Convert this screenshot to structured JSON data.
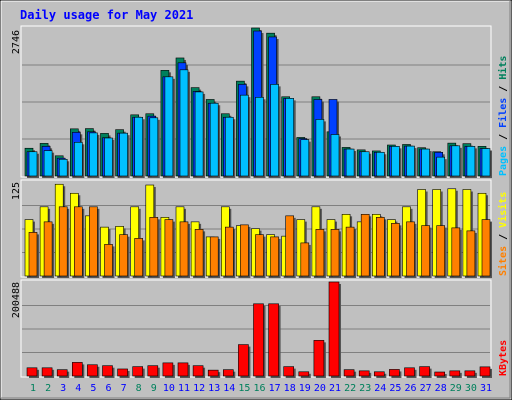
{
  "title": "Daily usage for May 2021",
  "colors": {
    "background": "#c0c0c0",
    "title": "#0000ff",
    "hits": "#00805c",
    "files": "#0040ff",
    "pages": "#00c0ff",
    "visits": "#ffff00",
    "sites": "#ff8000",
    "kbytes": "#ff0000",
    "weekend_day": "#00805c",
    "weekday": "#0000ff"
  },
  "chart_data": [
    {
      "type": "bar",
      "title": "Daily usage for May 2021",
      "categories": [
        "1",
        "2",
        "3",
        "4",
        "5",
        "6",
        "7",
        "8",
        "9",
        "10",
        "11",
        "12",
        "13",
        "14",
        "15",
        "16",
        "17",
        "18",
        "19",
        "20",
        "21",
        "22",
        "23",
        "24",
        "25",
        "26",
        "27",
        "28",
        "29",
        "30",
        "31"
      ],
      "weekend_days": [
        "1",
        "2",
        "8",
        "9",
        "15",
        "16",
        "22",
        "23",
        "29",
        "30"
      ],
      "ymax_label": "2746",
      "ylim": [
        0,
        2746
      ],
      "legend": [
        "Pages",
        "Files",
        "Hits"
      ],
      "series": [
        {
          "name": "Hits",
          "values": [
            515,
            605,
            375,
            875,
            880,
            790,
            860,
            1135,
            1155,
            1960,
            2190,
            1640,
            1420,
            1155,
            1760,
            2746,
            2650,
            1470,
            715,
            1470,
            820,
            530,
            485,
            465,
            575,
            585,
            525,
            450,
            610,
            600,
            550
          ]
        },
        {
          "name": "Files",
          "values": [
            450,
            550,
            330,
            810,
            820,
            710,
            795,
            1090,
            1110,
            1840,
            2100,
            1570,
            1350,
            1090,
            1700,
            2690,
            2580,
            1440,
            695,
            1420,
            1420,
            500,
            450,
            440,
            550,
            555,
            500,
            440,
            560,
            550,
            510
          ]
        },
        {
          "name": "Pages",
          "values": [
            450,
            470,
            310,
            625,
            800,
            705,
            795,
            1090,
            1080,
            1840,
            1970,
            1560,
            1350,
            1090,
            1500,
            1460,
            1700,
            1440,
            675,
            1050,
            770,
            500,
            450,
            440,
            550,
            555,
            500,
            350,
            560,
            550,
            510
          ]
        }
      ]
    },
    {
      "type": "bar",
      "categories": [
        "1",
        "2",
        "3",
        "4",
        "5",
        "6",
        "7",
        "8",
        "9",
        "10",
        "11",
        "12",
        "13",
        "14",
        "15",
        "16",
        "17",
        "18",
        "19",
        "20",
        "21",
        "22",
        "23",
        "24",
        "25",
        "26",
        "27",
        "28",
        "29",
        "30",
        "31"
      ],
      "ymax_label": "125",
      "ylim": [
        0,
        125
      ],
      "legend": [
        "Sites",
        "Visits"
      ],
      "series": [
        {
          "name": "Visits",
          "values": [
            75,
            92,
            122,
            110,
            80,
            65,
            66,
            92,
            121,
            78,
            92,
            72,
            52,
            92,
            67,
            63,
            55,
            53,
            75,
            92,
            75,
            82,
            72,
            82,
            75,
            92,
            115,
            115,
            116,
            115,
            110
          ]
        },
        {
          "name": "Sites",
          "values": [
            58,
            72,
            92,
            92,
            92,
            42,
            55,
            50,
            78,
            75,
            72,
            62,
            52,
            65,
            68,
            55,
            52,
            80,
            44,
            62,
            62,
            65,
            82,
            78,
            70,
            72,
            67,
            67,
            64,
            60,
            75
          ]
        }
      ]
    },
    {
      "type": "bar",
      "categories": [
        "1",
        "2",
        "3",
        "4",
        "5",
        "6",
        "7",
        "8",
        "9",
        "10",
        "11",
        "12",
        "13",
        "14",
        "15",
        "16",
        "17",
        "18",
        "19",
        "20",
        "21",
        "22",
        "23",
        "24",
        "25",
        "26",
        "27",
        "28",
        "29",
        "30",
        "31"
      ],
      "ymax_label": "200488",
      "ylim": [
        0,
        200488
      ],
      "legend": [
        "KBytes"
      ],
      "series": [
        {
          "name": "KBytes",
          "values": [
            17500,
            17500,
            13500,
            29000,
            24000,
            22000,
            15000,
            20000,
            22000,
            28000,
            28000,
            22000,
            12500,
            13500,
            67000,
            154000,
            154000,
            20000,
            9000,
            76000,
            200488,
            13500,
            11000,
            9000,
            14000,
            17500,
            20000,
            8500,
            11000,
            11000,
            19500
          ]
        }
      ]
    }
  ]
}
